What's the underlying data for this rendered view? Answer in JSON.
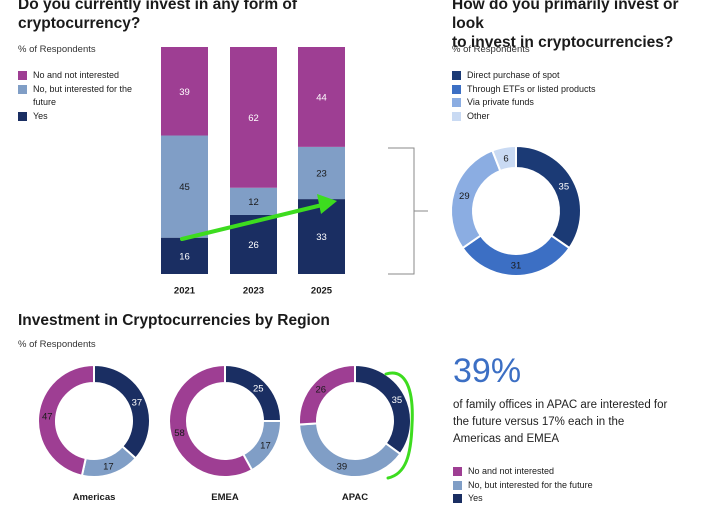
{
  "colors": {
    "no_interest": "#9e3e93",
    "interested": "#809ec6",
    "yes": "#1a2e62",
    "direct": "#1b3a75",
    "etf": "#3c6fc4",
    "funds": "#8bade2",
    "other": "#c9daf3",
    "arrow": "#3ddc1f",
    "accent": "#3c6fc4"
  },
  "chart1": {
    "title_line1": "Do you currently invest in any form of",
    "title_line2": "cryptocurrency?",
    "subtitle": "% of Respondents",
    "legend": [
      "No and not interested",
      "No, but interested for the future",
      "Yes"
    ]
  },
  "chart2": {
    "title_line1": "How do you primarily invest or look",
    "title_line2": "to invest in cryptocurrencies?",
    "subtitle": "% of Respondents",
    "legend": [
      "Direct purchase of spot",
      "Through ETFs or listed products",
      "Via private funds",
      "Other"
    ]
  },
  "chart3": {
    "title": "Investment in Cryptocurrencies by Region",
    "subtitle": "% of Respondents",
    "big_percent": "39%",
    "note": "of family offices in APAC are interested for the future versus 17% each in the Americas and EMEA",
    "legend": [
      "No and not interested",
      "No, but interested for the future",
      "Yes"
    ]
  },
  "chart_data": [
    {
      "type": "bar",
      "stacked": true,
      "title": "Do you currently invest in any form of cryptocurrency?",
      "ylabel": "% of Respondents",
      "categories": [
        "2021",
        "2023",
        "2025"
      ],
      "series": [
        {
          "name": "Yes",
          "values": [
            16,
            26,
            33
          ]
        },
        {
          "name": "No, but interested for the future",
          "values": [
            45,
            12,
            23
          ]
        },
        {
          "name": "No and not interested",
          "values": [
            39,
            62,
            44
          ]
        }
      ],
      "ylim": [
        0,
        100
      ]
    },
    {
      "type": "pie",
      "donut": true,
      "title": "How do you primarily invest or look to invest in cryptocurrencies?",
      "labels": [
        "Direct purchase of spot",
        "Through ETFs or listed products",
        "Via private funds",
        "Other"
      ],
      "values": [
        35,
        31,
        29,
        6
      ]
    },
    {
      "type": "pie",
      "donut": true,
      "title": "Investment in Cryptocurrencies by Region",
      "regions": [
        {
          "name": "Americas",
          "values": {
            "Yes": 37,
            "No, but interested for the future": 17,
            "No and not interested": 47
          }
        },
        {
          "name": "EMEA",
          "values": {
            "Yes": 25,
            "No, but interested for the future": 17,
            "No and not interested": 58
          }
        },
        {
          "name": "APAC",
          "values": {
            "Yes": 35,
            "No, but interested for the future": 39,
            "No and not interested": 26
          }
        }
      ]
    }
  ]
}
